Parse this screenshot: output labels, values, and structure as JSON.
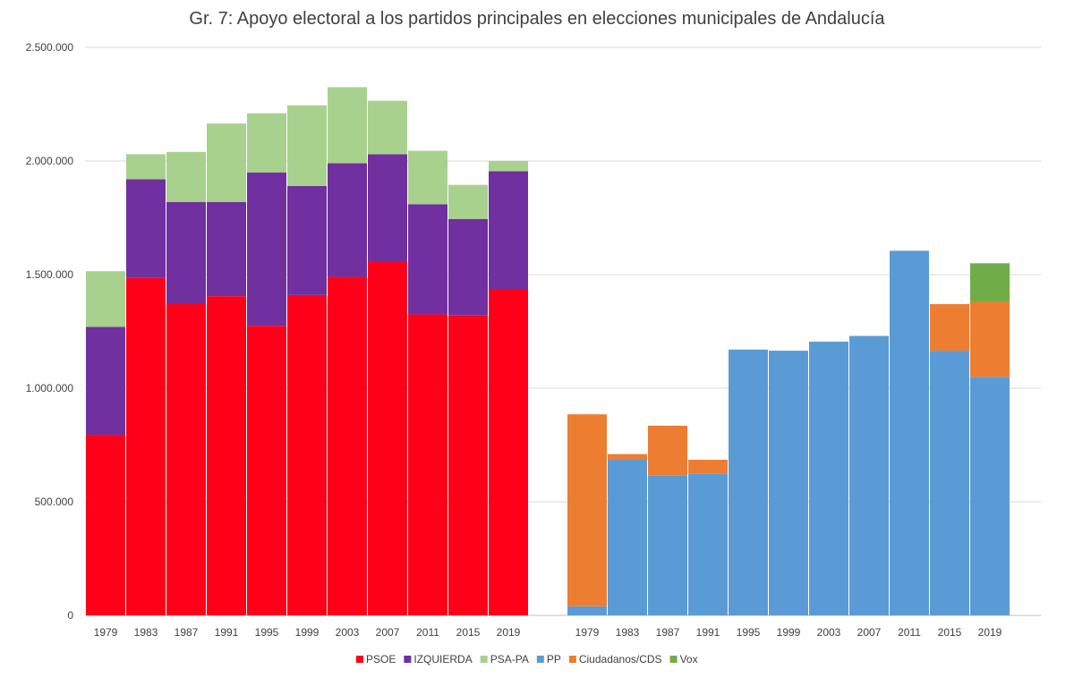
{
  "chart_data": {
    "type": "bar",
    "stacked": true,
    "title": "Gr. 7: Apoyo electoral a los partidos principales en elecciones municipales de Andalucía",
    "xlabel": "",
    "ylabel": "",
    "ylim": [
      0,
      2500000
    ],
    "yticks": [
      0,
      500000,
      1000000,
      1500000,
      2000000,
      2500000
    ],
    "ytick_labels": [
      "0",
      "500.000",
      "1.000.000",
      "1.500.000",
      "2.000.000",
      "2.500.000"
    ],
    "grid": true,
    "legend_position": "bottom",
    "groups": [
      {
        "categories": [
          "1979",
          "1983",
          "1987",
          "1991",
          "1995",
          "1999",
          "2003",
          "2007",
          "2011",
          "2015",
          "2019"
        ],
        "series": [
          {
            "name": "PSOE",
            "color": "#ff0018",
            "values": [
              795000,
              1485000,
              1370000,
              1405000,
              1275000,
              1410000,
              1490000,
              1555000,
              1325000,
              1320000,
              1435000
            ]
          },
          {
            "name": "IZQUIERDA",
            "color": "#7030a0",
            "values": [
              475000,
              435000,
              450000,
              415000,
              675000,
              480000,
              500000,
              475000,
              485000,
              425000,
              520000
            ]
          },
          {
            "name": "PSA-PA",
            "color": "#a9d18e",
            "values": [
              245000,
              110000,
              220000,
              345000,
              260000,
              355000,
              335000,
              235000,
              235000,
              150000,
              45000
            ]
          }
        ]
      },
      {
        "categories": [
          "1979",
          "1983",
          "1987",
          "1991",
          "1995",
          "1999",
          "2003",
          "2007",
          "2011",
          "2015",
          "2019"
        ],
        "series": [
          {
            "name": "PP",
            "color": "#5b9bd5",
            "values": [
              40000,
              685000,
              615000,
              625000,
              1170000,
              1165000,
              1205000,
              1230000,
              1605000,
              1165000,
              1050000
            ]
          },
          {
            "name": "Ciudadanos/CDS",
            "color": "#ed7d31",
            "values": [
              845000,
              25000,
              220000,
              60000,
              0,
              0,
              0,
              0,
              0,
              205000,
              330000
            ]
          },
          {
            "name": "Vox",
            "color": "#70ad47",
            "values": [
              0,
              0,
              0,
              0,
              0,
              0,
              0,
              0,
              0,
              0,
              170000
            ]
          }
        ]
      }
    ]
  }
}
